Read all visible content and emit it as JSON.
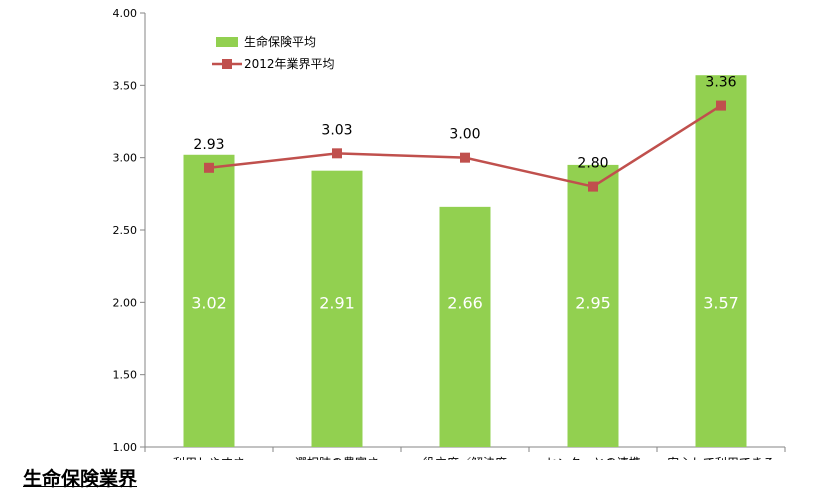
{
  "section_title": "生命保険業界",
  "chart_data": {
    "type": "bar",
    "categories": [
      "利用しやすさ",
      "選択肢の豊富さ",
      "役立度／解決度",
      "センターとの連携",
      "安心して利用できる"
    ],
    "series": [
      {
        "name": "生命保険平均",
        "type": "bar",
        "values": [
          3.02,
          2.91,
          2.66,
          2.95,
          3.57
        ]
      },
      {
        "name": "2012年業界平均",
        "type": "line",
        "values": [
          2.93,
          3.03,
          3.0,
          2.8,
          3.36
        ]
      }
    ],
    "bar_labels": [
      "3.02",
      "2.91",
      "2.66",
      "2.95",
      "3.57"
    ],
    "line_labels": [
      "2.93",
      "3.03",
      "3.00",
      "2.80",
      "3.36"
    ],
    "y_ticks": [
      "1.00",
      "1.50",
      "2.00",
      "2.50",
      "3.00",
      "3.50",
      "4.00"
    ],
    "ylim": [
      1.0,
      4.0
    ],
    "grid": false,
    "legend_position": "top-left",
    "colors": {
      "bar": "#92d050",
      "line": "#c0504d",
      "axis": "#868686"
    }
  }
}
